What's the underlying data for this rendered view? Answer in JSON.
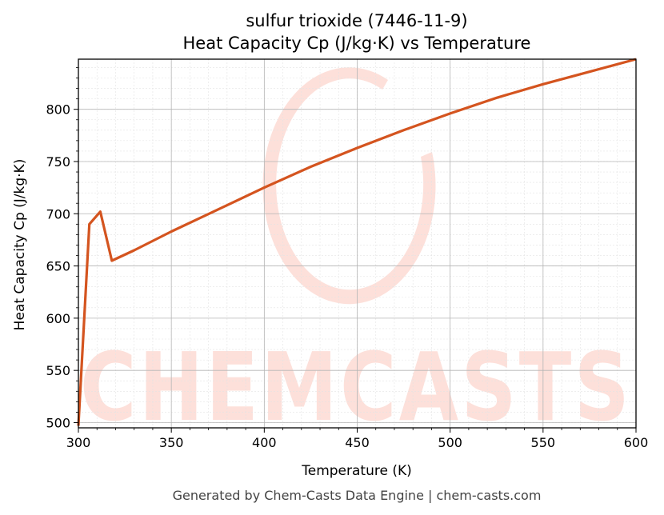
{
  "chart_data": {
    "type": "line",
    "title": "sulfur trioxide (7446-11-9)",
    "subtitle": "Heat Capacity Cp (J/kg·K) vs Temperature",
    "xlabel": "Temperature (K)",
    "ylabel": "Heat Capacity Cp (J/kg·K)",
    "xlim": [
      300,
      600
    ],
    "ylim": [
      495,
      848
    ],
    "xticks": [
      300,
      350,
      400,
      450,
      500,
      550,
      600
    ],
    "yticks": [
      500,
      550,
      600,
      650,
      700,
      750,
      800
    ],
    "grid": true,
    "line_color": "#d4541f",
    "series": [
      {
        "x": [
          300,
          305.9,
          311.8,
          318,
          330,
          350,
          375,
          400,
          425,
          450,
          475,
          500,
          525,
          550,
          575,
          600
        ],
        "values": [
          497,
          690,
          702,
          655,
          665,
          683,
          704,
          725,
          745,
          763,
          780,
          796,
          811,
          824,
          836,
          848
        ]
      }
    ]
  },
  "watermark": {
    "text": "CHEMCASTS",
    "color": "#fde0da"
  },
  "footer": "Generated by Chem-Casts Data Engine | chem-casts.com"
}
